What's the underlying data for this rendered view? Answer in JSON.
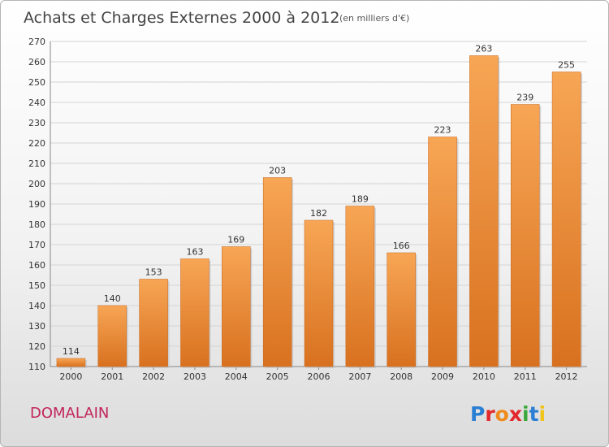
{
  "colors": {
    "bar_light": "#f7a655",
    "bar_dark": "#d8711f",
    "grid": "#d4d4d4",
    "commune_text": "#c2255c"
  },
  "header": {
    "title": "Achats et Charges Externes 2000 à 2012",
    "subtitle": "(en milliers d'€)"
  },
  "footer": {
    "commune": "DOMALAIN",
    "brand": "Proxiti"
  },
  "chart_data": {
    "type": "bar",
    "title": "Achats et Charges Externes 2000 à 2012",
    "subtitle": "(en milliers d'€)",
    "categories": [
      "2000",
      "2001",
      "2002",
      "2003",
      "2004",
      "2005",
      "2006",
      "2007",
      "2008",
      "2009",
      "2010",
      "2011",
      "2012"
    ],
    "values": [
      114,
      140,
      153,
      163,
      169,
      203,
      182,
      189,
      166,
      223,
      263,
      239,
      255
    ],
    "xlabel": "",
    "ylabel": "",
    "ylim": [
      110,
      270
    ],
    "yticks": [
      110,
      120,
      130,
      140,
      150,
      160,
      170,
      180,
      190,
      200,
      210,
      220,
      230,
      240,
      250,
      260,
      270
    ],
    "grid": true,
    "legend": "none"
  }
}
